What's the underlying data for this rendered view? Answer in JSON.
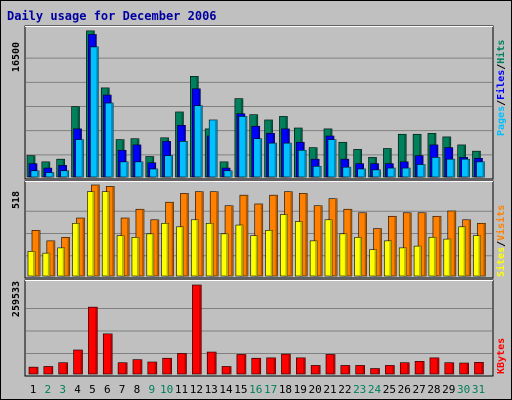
{
  "title": "Daily usage for December 2006",
  "colors": {
    "hits": "#00805c",
    "files": "#0000ff",
    "pages": "#00c0ff",
    "visits": "#ff8000",
    "sites": "#ffff00",
    "kbytes": "#ff0000",
    "weekday_label": "#000000",
    "weekend_label": "#00805c",
    "panel_bg": "#c0c0c0",
    "grid": "#808080"
  },
  "legends": {
    "top": [
      "Pages",
      "Files",
      "Hits"
    ],
    "middle": [
      "Sites",
      "Visits"
    ],
    "bottom": [
      "KBytes"
    ]
  },
  "axis_max_labels": {
    "top": "16500",
    "middle": "518",
    "bottom": "259533"
  },
  "chart_data": [
    {
      "type": "bar",
      "title": "Daily usage for December 2006",
      "categories": [
        "1",
        "2",
        "3",
        "4",
        "5",
        "6",
        "7",
        "8",
        "9",
        "10",
        "11",
        "12",
        "13",
        "14",
        "15",
        "16",
        "17",
        "18",
        "19",
        "20",
        "21",
        "22",
        "23",
        "24",
        "25",
        "26",
        "27",
        "28",
        "29",
        "30",
        "31"
      ],
      "weekend_days": [
        "2",
        "3",
        "9",
        "10",
        "16",
        "17",
        "23",
        "24",
        "30",
        "31"
      ],
      "ylim": [
        0,
        16500
      ],
      "series": [
        {
          "name": "Hits",
          "values": [
            2400,
            1700,
            2000,
            7900,
            16400,
            10000,
            4200,
            4300,
            2300,
            4400,
            7300,
            11300,
            5400,
            1700,
            8800,
            7000,
            6400,
            6800,
            5500,
            3300,
            5400,
            3900,
            3100,
            2200,
            3200,
            4800,
            4800,
            4900,
            4500,
            3600,
            2900
          ]
        },
        {
          "name": "Files",
          "values": [
            1500,
            1000,
            1300,
            5400,
            16000,
            9200,
            3000,
            3600,
            1600,
            4000,
            5800,
            9900,
            4600,
            1000,
            7100,
            5700,
            4900,
            5400,
            3900,
            2000,
            4600,
            2000,
            1500,
            1500,
            1500,
            1700,
            2400,
            3600,
            3300,
            2200,
            2100
          ]
        },
        {
          "name": "Pages",
          "values": [
            700,
            500,
            700,
            4200,
            14600,
            8300,
            1700,
            1700,
            900,
            2400,
            4000,
            8000,
            6400,
            700,
            6800,
            4300,
            3800,
            3800,
            3000,
            1200,
            4200,
            1100,
            900,
            800,
            1000,
            1000,
            1400,
            2200,
            2000,
            2000,
            1700
          ]
        }
      ]
    },
    {
      "type": "bar",
      "categories": [
        "1",
        "2",
        "3",
        "4",
        "5",
        "6",
        "7",
        "8",
        "9",
        "10",
        "11",
        "12",
        "13",
        "14",
        "15",
        "16",
        "17",
        "18",
        "19",
        "20",
        "21",
        "22",
        "23",
        "24",
        "25",
        "26",
        "27",
        "28",
        "29",
        "30",
        "31"
      ],
      "ylim": [
        0,
        518
      ],
      "series": [
        {
          "name": "Visits",
          "values": [
            260,
            200,
            220,
            330,
            518,
            510,
            330,
            380,
            320,
            420,
            470,
            480,
            480,
            400,
            460,
            410,
            460,
            480,
            470,
            400,
            440,
            380,
            360,
            270,
            340,
            360,
            360,
            340,
            370,
            320,
            300
          ]
        },
        {
          "name": "Sites",
          "values": [
            140,
            130,
            160,
            300,
            480,
            480,
            230,
            220,
            240,
            300,
            280,
            320,
            300,
            240,
            290,
            230,
            260,
            350,
            310,
            200,
            320,
            240,
            220,
            150,
            200,
            160,
            170,
            220,
            210,
            280,
            230
          ]
        }
      ]
    },
    {
      "type": "bar",
      "categories": [
        "1",
        "2",
        "3",
        "4",
        "5",
        "6",
        "7",
        "8",
        "9",
        "10",
        "11",
        "12",
        "13",
        "14",
        "15",
        "16",
        "17",
        "18",
        "19",
        "20",
        "21",
        "22",
        "23",
        "24",
        "25",
        "26",
        "27",
        "28",
        "29",
        "30",
        "31"
      ],
      "ylim": [
        0,
        259533
      ],
      "series": [
        {
          "name": "KBytes",
          "values": [
            20000,
            22000,
            33000,
            70000,
            195000,
            117000,
            33000,
            42000,
            35000,
            46000,
            60000,
            259533,
            64000,
            22000,
            57000,
            46000,
            47000,
            58000,
            47000,
            25000,
            57000,
            25000,
            25000,
            16000,
            25000,
            33000,
            37000,
            47000,
            33000,
            32000,
            34000
          ]
        }
      ]
    }
  ]
}
